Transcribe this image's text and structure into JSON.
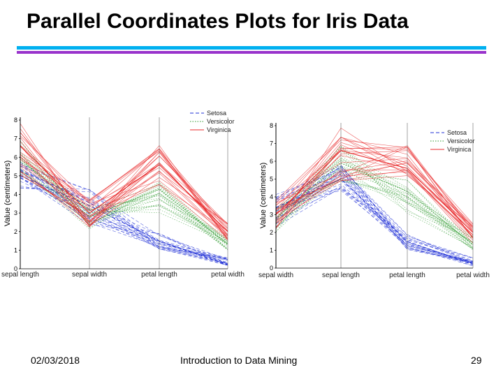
{
  "slide": {
    "title": "Parallel Coordinates Plots for Iris Data",
    "footer_date": "02/03/2018",
    "footer_center": "Introduction to Data Mining",
    "page_number": "29"
  },
  "colors": {
    "rule_top": "#00b0f0",
    "rule_bottom": "#9933cc",
    "Setosa": "#1f2fd6",
    "Versicolor": "#2e9a2e",
    "Virginica": "#e8282a"
  },
  "chart_data": [
    {
      "type": "line",
      "subtype": "parallel-coordinates",
      "title": "",
      "ylabel": "Value (centimeters)",
      "ylim": [
        0,
        8
      ],
      "yticks": [
        0,
        1,
        2,
        3,
        4,
        5,
        6,
        7,
        8
      ],
      "categories": [
        "sepal length",
        "sepal width",
        "petal length",
        "petal width"
      ],
      "legend": [
        "Setosa",
        "Versicolor",
        "Virginica"
      ],
      "legend_position": "top-right",
      "series": [
        {
          "name": "Setosa",
          "style": "dashed",
          "values": [
            5.0,
            3.4,
            1.5,
            0.2
          ],
          "min": [
            4.3,
            2.3,
            1.0,
            0.1
          ],
          "max": [
            5.8,
            4.4,
            1.9,
            0.6
          ]
        },
        {
          "name": "Versicolor",
          "style": "dotted",
          "values": [
            5.9,
            2.8,
            4.3,
            1.3
          ],
          "min": [
            4.9,
            2.0,
            3.0,
            1.0
          ],
          "max": [
            7.0,
            3.4,
            5.1,
            1.8
          ]
        },
        {
          "name": "Virginica",
          "style": "solid",
          "values": [
            6.6,
            3.0,
            5.6,
            2.0
          ],
          "min": [
            4.9,
            2.2,
            4.5,
            1.4
          ],
          "max": [
            7.9,
            3.8,
            6.9,
            2.5
          ]
        }
      ]
    },
    {
      "type": "line",
      "subtype": "parallel-coordinates",
      "title": "",
      "ylabel": "Value (centimeters)",
      "ylim": [
        0,
        8
      ],
      "yticks": [
        0,
        1,
        2,
        3,
        4,
        5,
        6,
        7,
        8
      ],
      "categories": [
        "sepal width",
        "sepal length",
        "petal length",
        "petal width"
      ],
      "legend": [
        "Setosa",
        "Versicolor",
        "Virginica"
      ],
      "legend_position": "top-right",
      "series": [
        {
          "name": "Setosa",
          "style": "dashed",
          "values": [
            3.4,
            5.0,
            1.5,
            0.2
          ],
          "min": [
            2.3,
            4.3,
            1.0,
            0.1
          ],
          "max": [
            4.4,
            5.8,
            1.9,
            0.6
          ]
        },
        {
          "name": "Versicolor",
          "style": "dotted",
          "values": [
            2.8,
            5.9,
            4.3,
            1.3
          ],
          "min": [
            2.0,
            4.9,
            3.0,
            1.0
          ],
          "max": [
            3.4,
            7.0,
            5.1,
            1.8
          ]
        },
        {
          "name": "Virginica",
          "style": "solid",
          "values": [
            3.0,
            6.6,
            5.6,
            2.0
          ],
          "min": [
            2.2,
            4.9,
            4.5,
            1.4
          ],
          "max": [
            3.8,
            7.9,
            6.9,
            2.5
          ]
        }
      ]
    }
  ]
}
